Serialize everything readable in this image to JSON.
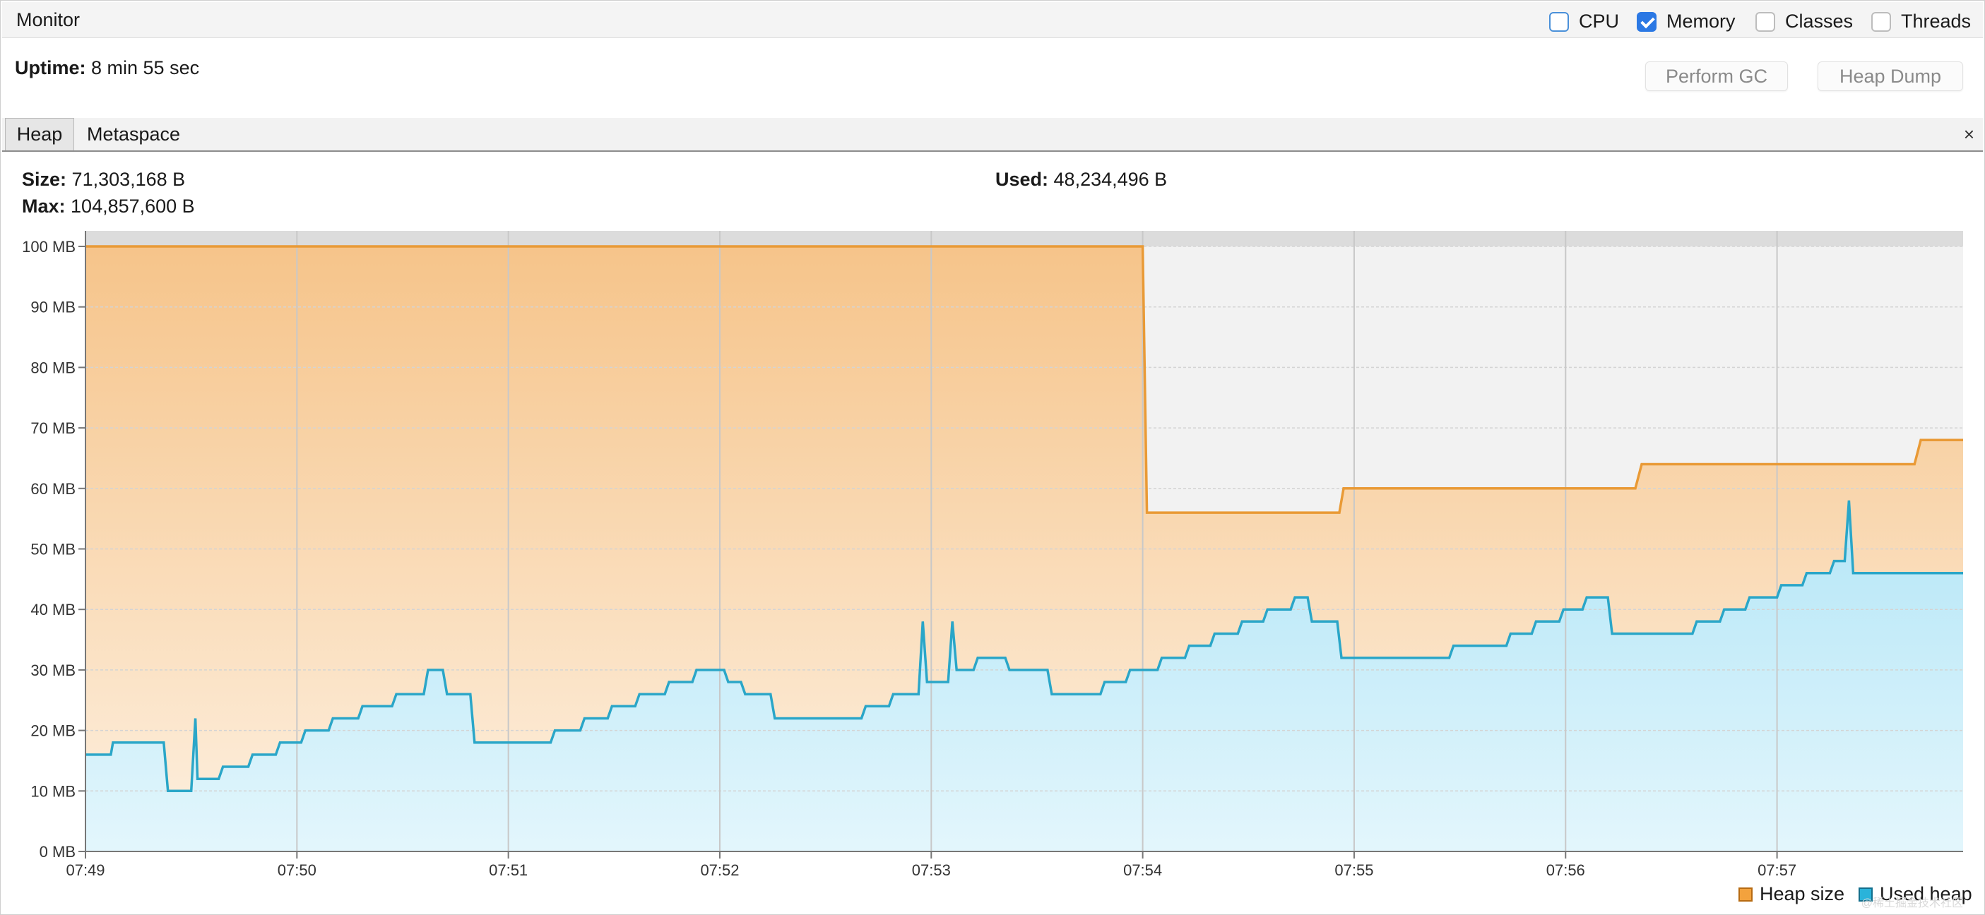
{
  "window": {
    "title": "Monitor"
  },
  "checkboxes": [
    {
      "label": "CPU",
      "checked": false
    },
    {
      "label": "Memory",
      "checked": true
    },
    {
      "label": "Classes",
      "checked": false
    },
    {
      "label": "Threads",
      "checked": false
    }
  ],
  "uptime": {
    "label": "Uptime:",
    "value": "8 min 55 sec"
  },
  "buttons": {
    "perform_gc": "Perform GC",
    "heap_dump": "Heap Dump"
  },
  "tabs": {
    "heap": "Heap",
    "metaspace": "Metaspace",
    "close": "×"
  },
  "stats": {
    "size_label": "Size:",
    "size_value": "71,303,168 B",
    "max_label": "Max:",
    "max_value": "104,857,600 B",
    "used_label": "Used:",
    "used_value": "48,234,496 B"
  },
  "watermark": "@稀土掘金技术社区",
  "colors": {
    "heap_size": "#e99a36",
    "used_heap": "#2aa6c8",
    "checkbox_checked": "#2b78e4"
  },
  "chart_data": {
    "type": "area",
    "ylabel": "",
    "xlabel": "",
    "y_ticks": [
      "0 MB",
      "10 MB",
      "20 MB",
      "30 MB",
      "40 MB",
      "50 MB",
      "60 MB",
      "70 MB",
      "80 MB",
      "90 MB",
      "100 MB"
    ],
    "x_ticks": [
      "07:49",
      "07:50",
      "07:51",
      "07:52",
      "07:53",
      "07:54",
      "07:55",
      "07:56",
      "07:57"
    ],
    "ylim": [
      0,
      100
    ],
    "x_range_minutes": [
      0,
      8.88
    ],
    "max_line": 100,
    "grid": true,
    "legend": "bottom-right",
    "series": [
      {
        "name": "Heap size",
        "points": [
          [
            0,
            100
          ],
          [
            5.0,
            100
          ],
          [
            5.02,
            56
          ],
          [
            5.93,
            56
          ],
          [
            5.95,
            60
          ],
          [
            7.33,
            60
          ],
          [
            7.36,
            64
          ],
          [
            8.65,
            64
          ],
          [
            8.68,
            68
          ],
          [
            8.88,
            68
          ]
        ]
      },
      {
        "name": "Used heap",
        "points": [
          [
            0,
            16
          ],
          [
            0.12,
            16
          ],
          [
            0.13,
            18
          ],
          [
            0.37,
            18
          ],
          [
            0.39,
            10
          ],
          [
            0.5,
            10
          ],
          [
            0.52,
            22
          ],
          [
            0.53,
            12
          ],
          [
            0.63,
            12
          ],
          [
            0.65,
            14
          ],
          [
            0.77,
            14
          ],
          [
            0.79,
            16
          ],
          [
            0.9,
            16
          ],
          [
            0.92,
            18
          ],
          [
            1.02,
            18
          ],
          [
            1.04,
            20
          ],
          [
            1.15,
            20
          ],
          [
            1.17,
            22
          ],
          [
            1.29,
            22
          ],
          [
            1.31,
            24
          ],
          [
            1.45,
            24
          ],
          [
            1.47,
            26
          ],
          [
            1.6,
            26
          ],
          [
            1.62,
            30
          ],
          [
            1.69,
            30
          ],
          [
            1.71,
            26
          ],
          [
            1.82,
            26
          ],
          [
            1.84,
            18
          ],
          [
            2.2,
            18
          ],
          [
            2.22,
            20
          ],
          [
            2.34,
            20
          ],
          [
            2.36,
            22
          ],
          [
            2.47,
            22
          ],
          [
            2.49,
            24
          ],
          [
            2.6,
            24
          ],
          [
            2.62,
            26
          ],
          [
            2.74,
            26
          ],
          [
            2.76,
            28
          ],
          [
            2.87,
            28
          ],
          [
            2.89,
            30
          ],
          [
            3.02,
            30
          ],
          [
            3.04,
            28
          ],
          [
            3.1,
            28
          ],
          [
            3.12,
            26
          ],
          [
            3.24,
            26
          ],
          [
            3.26,
            22
          ],
          [
            3.67,
            22
          ],
          [
            3.69,
            24
          ],
          [
            3.8,
            24
          ],
          [
            3.82,
            26
          ],
          [
            3.94,
            26
          ],
          [
            3.96,
            38
          ],
          [
            3.98,
            28
          ],
          [
            4.08,
            28
          ],
          [
            4.1,
            38
          ],
          [
            4.12,
            30
          ],
          [
            4.2,
            30
          ],
          [
            4.22,
            32
          ],
          [
            4.35,
            32
          ],
          [
            4.37,
            30
          ],
          [
            4.55,
            30
          ],
          [
            4.57,
            26
          ],
          [
            4.8,
            26
          ],
          [
            4.82,
            28
          ],
          [
            4.92,
            28
          ],
          [
            4.94,
            30
          ],
          [
            5.07,
            30
          ],
          [
            5.09,
            32
          ],
          [
            5.2,
            32
          ],
          [
            5.22,
            34
          ],
          [
            5.32,
            34
          ],
          [
            5.34,
            36
          ],
          [
            5.45,
            36
          ],
          [
            5.47,
            38
          ],
          [
            5.57,
            38
          ],
          [
            5.59,
            40
          ],
          [
            5.7,
            40
          ],
          [
            5.72,
            42
          ],
          [
            5.78,
            42
          ],
          [
            5.8,
            38
          ],
          [
            5.92,
            38
          ],
          [
            5.94,
            32
          ],
          [
            6.45,
            32
          ],
          [
            6.47,
            34
          ],
          [
            6.72,
            34
          ],
          [
            6.74,
            36
          ],
          [
            6.84,
            36
          ],
          [
            6.86,
            38
          ],
          [
            6.97,
            38
          ],
          [
            6.99,
            40
          ],
          [
            7.08,
            40
          ],
          [
            7.1,
            42
          ],
          [
            7.2,
            42
          ],
          [
            7.22,
            36
          ],
          [
            7.6,
            36
          ],
          [
            7.62,
            38
          ],
          [
            7.73,
            38
          ],
          [
            7.75,
            40
          ],
          [
            7.85,
            40
          ],
          [
            7.87,
            42
          ],
          [
            8.0,
            42
          ],
          [
            8.02,
            44
          ],
          [
            8.12,
            44
          ],
          [
            8.14,
            46
          ],
          [
            8.25,
            46
          ],
          [
            8.27,
            48
          ],
          [
            8.32,
            48
          ],
          [
            8.34,
            58
          ],
          [
            8.36,
            46
          ],
          [
            8.88,
            46
          ]
        ]
      }
    ]
  }
}
